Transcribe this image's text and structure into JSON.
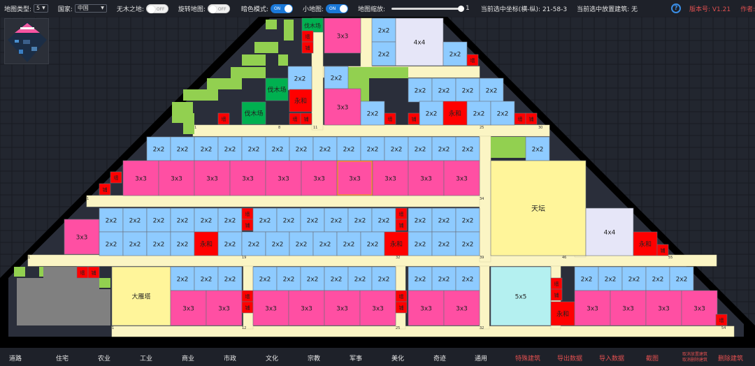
{
  "topbar": {
    "map_type_label": "地图类型:",
    "map_type_value": "5",
    "country_label": "国家:",
    "country_value": "中国",
    "no_wood_label": "无木之地:",
    "no_wood_state": "OFF",
    "rotate_label": "旋转地图:",
    "rotate_state": "OFF",
    "dark_label": "暗色模式:",
    "dark_state": "ON",
    "minimap_label": "小地图:",
    "minimap_state": "ON",
    "zoom_label": "地图缩放:",
    "zoom_value": "1",
    "coord_text": "当前选中坐标(横-纵): 21-58-3",
    "building_text": "当前选中放置建筑: 无",
    "version": "版本号: V1.21",
    "author": "作者: 咕噜他念."
  },
  "map": {
    "labels": {
      "b2": "2x2",
      "b3": "3x3",
      "b4": "4x4",
      "b5": "5x5",
      "lumber": "伐木场",
      "yonghe": "永和",
      "tiantan": "天坛",
      "dayanta": "大雁塔",
      "fence_a": "墙",
      "fence_b": "铺"
    },
    "numbers": [
      "8",
      "11",
      "25",
      "30",
      "34",
      "19",
      "32",
      "39",
      "46",
      "55",
      "12",
      "25",
      "32",
      "54",
      "1",
      "1",
      "1",
      "1"
    ],
    "colors": {
      "bg": "#181b22",
      "dark_tile": "#2a2e3a",
      "black": "#000000",
      "green": "#92d050",
      "road": "#fbf5c4",
      "b2": "#8ecbff",
      "b3": "#ff4fa3",
      "b4": "#e6e6f8",
      "b5": "#b4f0f0",
      "red": "#ff0000",
      "lumber": "#00b050",
      "yellow": "#fff59a",
      "gray": "#808080"
    }
  },
  "bottombar": {
    "items": [
      "道路",
      "住宅",
      "农业",
      "工业",
      "商业",
      "市政",
      "文化",
      "宗教",
      "军事",
      "美化",
      "奇迹",
      "通用"
    ],
    "actions": [
      "特殊建筑",
      "导出数据",
      "导入数据",
      "截图"
    ],
    "clear_1": "取消放置建筑",
    "clear_2": "取消删除建筑",
    "delete": "删除建筑"
  }
}
